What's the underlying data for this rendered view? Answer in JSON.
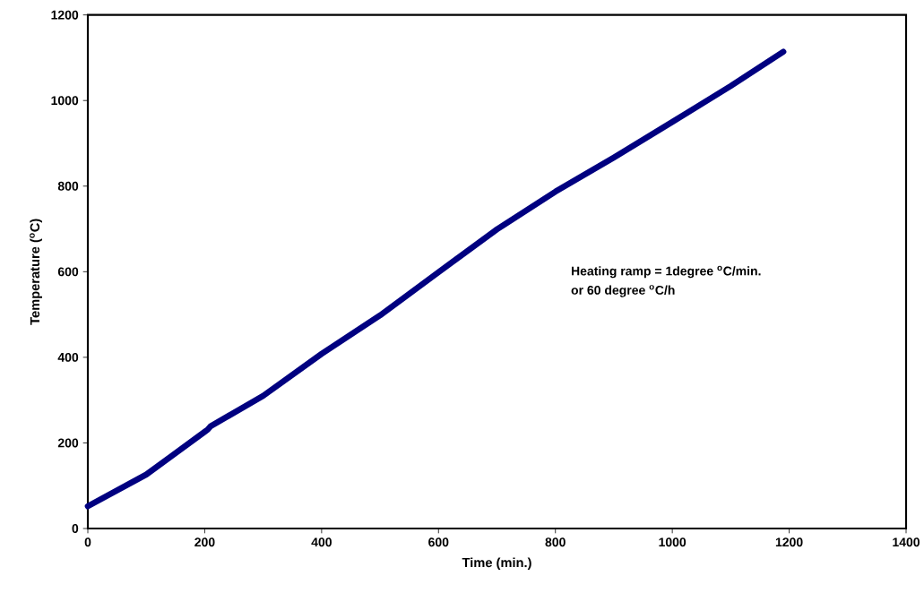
{
  "chart_data": {
    "type": "line",
    "xlabel": "Time (min.)",
    "ylabel": "Temperature ($^{o}$C)",
    "x": [
      0,
      100,
      200,
      205,
      210,
      300,
      400,
      500,
      600,
      700,
      800,
      900,
      1000,
      1100,
      1190
    ],
    "values": [
      52,
      126,
      226,
      231,
      239,
      310,
      408,
      498,
      599,
      699,
      787,
      867,
      950,
      1034,
      1114
    ],
    "color": "#000080",
    "line_style": "solid",
    "xlim": [
      0,
      1400
    ],
    "ylim": [
      0,
      1200
    ],
    "xticks": [
      0,
      200,
      400,
      600,
      800,
      1000,
      1200,
      1400
    ],
    "yticks": [
      0,
      200,
      400,
      600,
      800,
      1000,
      1200
    ],
    "annotations": [
      "Heating ramp = 1degree $^{o}$C/min.",
      "or 60 degree $^{o}$C/h"
    ]
  }
}
